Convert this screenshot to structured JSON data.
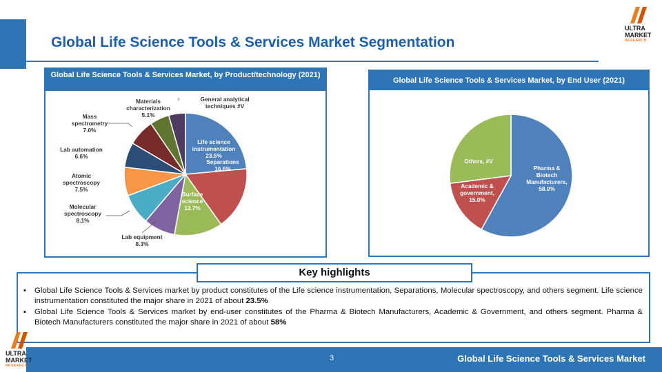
{
  "page": {
    "title": "Global Life Science Tools & Services Market Segmentation",
    "page_number": "3",
    "footer_title": "Global Life Science Tools & Services Market"
  },
  "logo": {
    "line1": "ULTRA",
    "line2": "MARKET",
    "line3": "RESEARCH"
  },
  "colors": {
    "accent": "#2e75b6",
    "title": "#1f5fa8"
  },
  "chart_data": [
    {
      "type": "pie",
      "title": "Global  Life Science Tools & Services Market, by Product/technology (2021)",
      "slices": [
        {
          "label": "Life science instrumentation",
          "value_label": "23.5%",
          "value": 23.5,
          "color": "#4f81bd"
        },
        {
          "label": "Separations",
          "value_label": "16.6%",
          "value": 16.6,
          "color": "#c0504d"
        },
        {
          "label": "Surface science",
          "value_label": "12.7%",
          "value": 12.7,
          "color": "#9bbb59"
        },
        {
          "label": "Lab equipment",
          "value_label": "8.3%",
          "value": 8.3,
          "color": "#8064a2"
        },
        {
          "label": "Molecular spectroscopy",
          "value_label": "8.1%",
          "value": 8.1,
          "color": "#4bacc6"
        },
        {
          "label": "Atomic spectroscopy",
          "value_label": "7.5%",
          "value": 7.5,
          "color": "#f79646"
        },
        {
          "label": "Lab automation",
          "value_label": "6.6%",
          "value": 6.6,
          "color": "#2c4d75"
        },
        {
          "label": "Mass spectrometry",
          "value_label": "7.0%",
          "value": 7.0,
          "color": "#772c2a"
        },
        {
          "label": "Materials characterization",
          "value_label": "5.1%",
          "value": 5.1,
          "color": "#5f7530"
        },
        {
          "label": "General analytical techniques",
          "value_label": "4.4%",
          "value": 4.4,
          "color": "#4d3b62"
        }
      ]
    },
    {
      "type": "pie",
      "title": "Global   Life Science Tools & Services Market, by End User (2021)",
      "slices": [
        {
          "label": "Pharma & Biotech Manufacturers,",
          "value_label": "58.0%",
          "value": 58.0,
          "color": "#4f81bd"
        },
        {
          "label": "Academic & government,",
          "value_label": "15.0%",
          "value": 15.0,
          "color": "#c0504d"
        },
        {
          "label": "Others,",
          "value_label": "27.0%",
          "value": 27.0,
          "color": "#9bbb59"
        }
      ]
    }
  ],
  "highlights": {
    "title": "Key highlights",
    "items": [
      {
        "text": "Global Life Science Tools & Services market by product constitutes of the Life science instrumentation, Separations, Molecular spectroscopy, and others segment. Life science instrumentation constituted the major share in 2021 of about ",
        "bold": "23.5%"
      },
      {
        "text": "Global Life Science Tools & Services market by end-user constitutes of the Pharma & Biotech Manufacturers, Academic & Government, and others segment. Pharma & Biotech Manufacturers constituted the major share in 2021 of about ",
        "bold": "58%"
      }
    ]
  }
}
